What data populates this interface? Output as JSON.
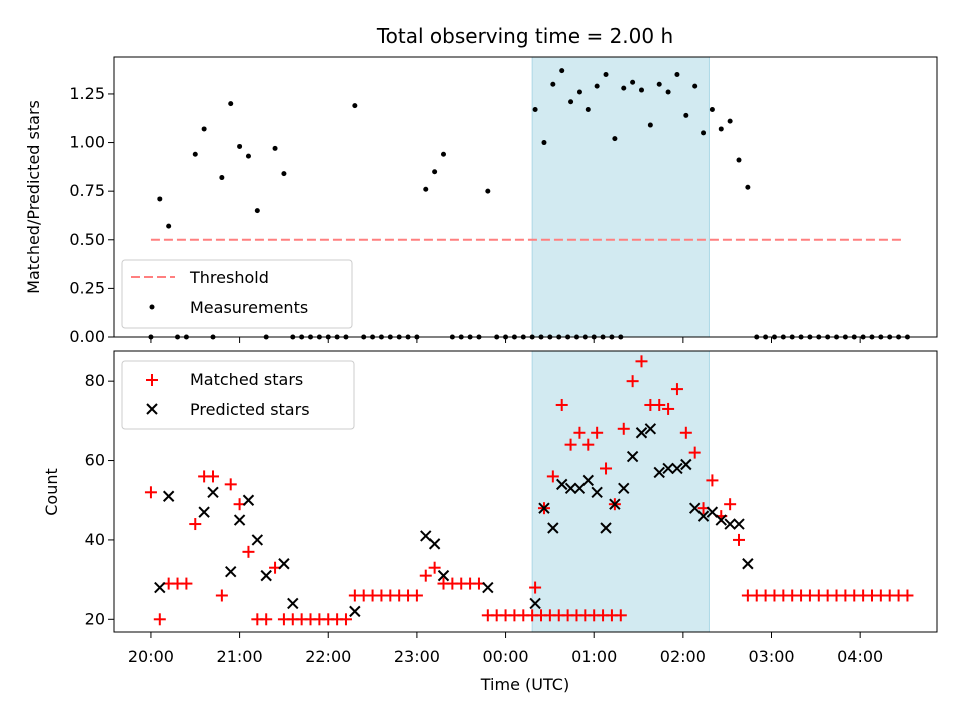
{
  "chart_data": {
    "type": "scatter",
    "title": "Total observing time = 2.00 h",
    "xlabel": "Time (UTC)",
    "x_unit": "time of day (UTC), continuing past midnight",
    "x_ticks": [
      "20:00",
      "21:00",
      "22:00",
      "23:00",
      "00:00",
      "01:00",
      "02:00",
      "03:00",
      "04:00"
    ],
    "x_range": [
      "19:35",
      "04:52"
    ],
    "highlight_interval": [
      "00:18",
      "02:18"
    ],
    "highlight_color": "#add8e6",
    "top": {
      "ylabel": "Matched/Predicted stars",
      "ylim": [
        0,
        1.44
      ],
      "yticks": [
        "0.00",
        "0.25",
        "0.50",
        "0.75",
        "1.00",
        "1.25"
      ],
      "threshold": {
        "name": "Threshold",
        "value": 0.5,
        "from": "20:00",
        "to": "04:30",
        "color": "#ff7f7f"
      },
      "measurements": {
        "name": "Measurements",
        "color": "#000000",
        "points": [
          [
            "20:00",
            0
          ],
          [
            "20:06",
            0.71
          ],
          [
            "20:12",
            0.57
          ],
          [
            "20:18",
            0
          ],
          [
            "20:24",
            0
          ],
          [
            "20:30",
            0.94
          ],
          [
            "20:36",
            1.07
          ],
          [
            "20:42",
            0
          ],
          [
            "20:48",
            0.82
          ],
          [
            "20:54",
            1.2
          ],
          [
            "21:00",
            0.98
          ],
          [
            "21:06",
            0.93
          ],
          [
            "21:12",
            0.65
          ],
          [
            "21:18",
            0
          ],
          [
            "21:24",
            0.97
          ],
          [
            "21:30",
            0.84
          ],
          [
            "21:36",
            0
          ],
          [
            "21:42",
            0
          ],
          [
            "21:48",
            0
          ],
          [
            "21:54",
            0
          ],
          [
            "22:00",
            0
          ],
          [
            "22:06",
            0
          ],
          [
            "22:12",
            0
          ],
          [
            "22:18",
            1.19
          ],
          [
            "22:24",
            0
          ],
          [
            "22:30",
            0
          ],
          [
            "22:36",
            0
          ],
          [
            "22:42",
            0
          ],
          [
            "22:48",
            0
          ],
          [
            "22:54",
            0
          ],
          [
            "23:00",
            0
          ],
          [
            "23:06",
            0.76
          ],
          [
            "23:12",
            0.85
          ],
          [
            "23:18",
            0.94
          ],
          [
            "23:24",
            0
          ],
          [
            "23:30",
            0
          ],
          [
            "23:36",
            0
          ],
          [
            "23:42",
            0
          ],
          [
            "23:48",
            0.75
          ],
          [
            "23:54",
            0
          ],
          [
            "00:00",
            0
          ],
          [
            "00:06",
            0
          ],
          [
            "00:12",
            0
          ],
          [
            "00:18",
            0
          ],
          [
            "00:24",
            0
          ],
          [
            "00:30",
            0
          ],
          [
            "00:36",
            0
          ],
          [
            "00:42",
            0
          ],
          [
            "00:48",
            0
          ],
          [
            "00:54",
            0
          ],
          [
            "01:00",
            0
          ],
          [
            "01:06",
            0
          ],
          [
            "01:12",
            0
          ],
          [
            "01:18",
            0
          ],
          [
            "00:20",
            1.17
          ],
          [
            "00:26",
            1.0
          ],
          [
            "00:32",
            1.3
          ],
          [
            "00:38",
            1.37
          ],
          [
            "00:44",
            1.21
          ],
          [
            "00:50",
            1.26
          ],
          [
            "00:56",
            1.17
          ],
          [
            "01:02",
            1.29
          ],
          [
            "01:08",
            1.35
          ],
          [
            "01:14",
            1.02
          ],
          [
            "01:20",
            1.28
          ],
          [
            "01:26",
            1.31
          ],
          [
            "01:32",
            1.27
          ],
          [
            "01:38",
            1.09
          ],
          [
            "01:44",
            1.3
          ],
          [
            "01:50",
            1.26
          ],
          [
            "01:56",
            1.35
          ],
          [
            "02:02",
            1.14
          ],
          [
            "02:08",
            1.29
          ],
          [
            "02:14",
            1.05
          ],
          [
            "02:20",
            1.17
          ],
          [
            "02:26",
            1.07
          ],
          [
            "02:32",
            1.11
          ],
          [
            "02:38",
            0.91
          ],
          [
            "02:44",
            0.77
          ],
          [
            "02:50",
            0
          ],
          [
            "02:56",
            0
          ],
          [
            "03:02",
            0
          ],
          [
            "03:08",
            0
          ],
          [
            "03:14",
            0
          ],
          [
            "03:20",
            0
          ],
          [
            "03:26",
            0
          ],
          [
            "03:32",
            0
          ],
          [
            "03:38",
            0
          ],
          [
            "03:44",
            0
          ],
          [
            "03:50",
            0
          ],
          [
            "03:56",
            0
          ],
          [
            "04:02",
            0
          ],
          [
            "04:08",
            0
          ],
          [
            "04:14",
            0
          ],
          [
            "04:20",
            0
          ],
          [
            "04:26",
            0
          ],
          [
            "04:32",
            0
          ]
        ]
      },
      "legend": [
        "Threshold",
        "Measurements"
      ]
    },
    "bottom": {
      "ylabel": "Count",
      "ylim": [
        16.8,
        87.6
      ],
      "yticks": [
        "20",
        "40",
        "60",
        "80"
      ],
      "matched": {
        "name": "Matched stars",
        "color": "#ff0000",
        "points": [
          [
            "20:00",
            52
          ],
          [
            "20:06",
            20
          ],
          [
            "20:12",
            29
          ],
          [
            "20:18",
            29
          ],
          [
            "20:24",
            29
          ],
          [
            "20:30",
            44
          ],
          [
            "20:36",
            56
          ],
          [
            "20:42",
            56
          ],
          [
            "20:48",
            26
          ],
          [
            "20:54",
            54
          ],
          [
            "21:00",
            49
          ],
          [
            "21:06",
            37
          ],
          [
            "21:12",
            20
          ],
          [
            "21:18",
            20
          ],
          [
            "21:24",
            33
          ],
          [
            "21:30",
            20
          ],
          [
            "21:36",
            20
          ],
          [
            "21:42",
            20
          ],
          [
            "21:48",
            20
          ],
          [
            "21:54",
            20
          ],
          [
            "22:00",
            20
          ],
          [
            "22:06",
            20
          ],
          [
            "22:12",
            20
          ],
          [
            "22:18",
            26
          ],
          [
            "22:24",
            26
          ],
          [
            "22:30",
            26
          ],
          [
            "22:36",
            26
          ],
          [
            "22:42",
            26
          ],
          [
            "22:48",
            26
          ],
          [
            "22:54",
            26
          ],
          [
            "23:00",
            26
          ],
          [
            "23:06",
            31
          ],
          [
            "23:12",
            33
          ],
          [
            "23:18",
            29
          ],
          [
            "23:24",
            29
          ],
          [
            "23:30",
            29
          ],
          [
            "23:36",
            29
          ],
          [
            "23:42",
            29
          ],
          [
            "23:48",
            21
          ],
          [
            "23:54",
            21
          ],
          [
            "00:00",
            21
          ],
          [
            "00:06",
            21
          ],
          [
            "00:12",
            21
          ],
          [
            "00:18",
            21
          ],
          [
            "00:24",
            21
          ],
          [
            "00:30",
            21
          ],
          [
            "00:36",
            21
          ],
          [
            "00:42",
            21
          ],
          [
            "00:48",
            21
          ],
          [
            "00:54",
            21
          ],
          [
            "01:00",
            21
          ],
          [
            "01:06",
            21
          ],
          [
            "01:12",
            21
          ],
          [
            "01:18",
            21
          ],
          [
            "00:20",
            28
          ],
          [
            "00:26",
            48
          ],
          [
            "00:32",
            56
          ],
          [
            "00:38",
            74
          ],
          [
            "00:44",
            64
          ],
          [
            "00:50",
            67
          ],
          [
            "00:56",
            64
          ],
          [
            "01:02",
            67
          ],
          [
            "01:08",
            58
          ],
          [
            "01:14",
            49
          ],
          [
            "01:20",
            68
          ],
          [
            "01:26",
            80
          ],
          [
            "01:32",
            85
          ],
          [
            "01:38",
            74
          ],
          [
            "01:44",
            74
          ],
          [
            "01:50",
            73
          ],
          [
            "01:56",
            78
          ],
          [
            "02:02",
            67
          ],
          [
            "02:08",
            62
          ],
          [
            "02:14",
            48
          ],
          [
            "02:20",
            55
          ],
          [
            "02:26",
            46
          ],
          [
            "02:32",
            49
          ],
          [
            "02:38",
            40
          ],
          [
            "02:44",
            26
          ],
          [
            "02:50",
            26
          ],
          [
            "02:56",
            26
          ],
          [
            "03:02",
            26
          ],
          [
            "03:08",
            26
          ],
          [
            "03:14",
            26
          ],
          [
            "03:20",
            26
          ],
          [
            "03:26",
            26
          ],
          [
            "03:32",
            26
          ],
          [
            "03:38",
            26
          ],
          [
            "03:44",
            26
          ],
          [
            "03:50",
            26
          ],
          [
            "03:56",
            26
          ],
          [
            "04:02",
            26
          ],
          [
            "04:08",
            26
          ],
          [
            "04:14",
            26
          ],
          [
            "04:20",
            26
          ],
          [
            "04:26",
            26
          ],
          [
            "04:32",
            26
          ]
        ]
      },
      "predicted": {
        "name": "Predicted stars",
        "color": "#000000",
        "points": [
          [
            "20:06",
            28
          ],
          [
            "20:12",
            51
          ],
          [
            "20:36",
            47
          ],
          [
            "20:42",
            52
          ],
          [
            "20:54",
            32
          ],
          [
            "21:00",
            45
          ],
          [
            "21:06",
            50
          ],
          [
            "21:12",
            40
          ],
          [
            "21:18",
            31
          ],
          [
            "21:30",
            34
          ],
          [
            "21:36",
            24
          ],
          [
            "22:18",
            22
          ],
          [
            "23:06",
            41
          ],
          [
            "23:12",
            39
          ],
          [
            "23:18",
            31
          ],
          [
            "23:48",
            28
          ],
          [
            "00:20",
            24
          ],
          [
            "00:26",
            48
          ],
          [
            "00:32",
            43
          ],
          [
            "00:38",
            54
          ],
          [
            "00:44",
            53
          ],
          [
            "00:50",
            53
          ],
          [
            "00:56",
            55
          ],
          [
            "01:02",
            52
          ],
          [
            "01:08",
            43
          ],
          [
            "01:14",
            49
          ],
          [
            "01:20",
            53
          ],
          [
            "01:26",
            61
          ],
          [
            "01:32",
            67
          ],
          [
            "01:38",
            68
          ],
          [
            "01:44",
            57
          ],
          [
            "01:50",
            58
          ],
          [
            "01:56",
            58
          ],
          [
            "02:02",
            59
          ],
          [
            "02:08",
            48
          ],
          [
            "02:14",
            46
          ],
          [
            "02:20",
            47
          ],
          [
            "02:26",
            45
          ],
          [
            "02:32",
            44
          ],
          [
            "02:38",
            44
          ],
          [
            "02:44",
            34
          ]
        ]
      },
      "legend": [
        "Matched stars",
        "Predicted stars"
      ]
    }
  }
}
